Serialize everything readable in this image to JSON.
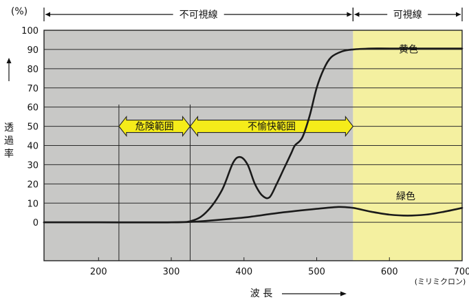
{
  "chart_data": {
    "type": "line",
    "y_unit": "(%)",
    "ylabel": "透過率",
    "xlabel": "波 長",
    "x_unit": "(ミリミクロン)",
    "xlim": [
      125,
      700
    ],
    "ylim": [
      -20,
      100
    ],
    "x_ticks": [
      200,
      300,
      400,
      500,
      600,
      700
    ],
    "y_ticks": [
      0,
      10,
      20,
      30,
      40,
      50,
      60,
      70,
      80,
      90,
      100
    ],
    "grid": "horizontal",
    "regions": [
      {
        "name": "invisible",
        "label": "不可視線",
        "from": 125,
        "to": 550,
        "color": "#c8c8c6"
      },
      {
        "name": "visible",
        "label": "可視線",
        "from": 550,
        "to": 700,
        "color": "#f4f0a0"
      }
    ],
    "ranges": [
      {
        "name": "danger",
        "label": "危険範囲",
        "from": 228,
        "to": 326,
        "y": 50
      },
      {
        "name": "unpleasant",
        "label": "不愉快範囲",
        "from": 326,
        "to": 550,
        "y": 50
      }
    ],
    "series": [
      {
        "name": "黄色",
        "x": [
          125,
          200,
          300,
          330,
          350,
          370,
          385,
          395,
          405,
          415,
          425,
          435,
          445,
          455,
          465,
          470,
          480,
          490,
          500,
          510,
          520,
          535,
          550,
          575,
          600,
          650,
          700
        ],
        "y": [
          0,
          0,
          0,
          1,
          6,
          17,
          31,
          34,
          30,
          20,
          14,
          13,
          20,
          28,
          36,
          40,
          44,
          55,
          70,
          80,
          86,
          89,
          90,
          90.5,
          90.5,
          90.5,
          90.5
        ]
      },
      {
        "name": "緑色",
        "x": [
          125,
          200,
          300,
          330,
          350,
          400,
          450,
          500,
          530,
          550,
          575,
          600,
          625,
          650,
          675,
          700
        ],
        "y": [
          0,
          0,
          0,
          0.3,
          0.8,
          2.5,
          5,
          7,
          8,
          7.5,
          5.5,
          4,
          3.5,
          4,
          5.5,
          7.5
        ]
      }
    ]
  }
}
